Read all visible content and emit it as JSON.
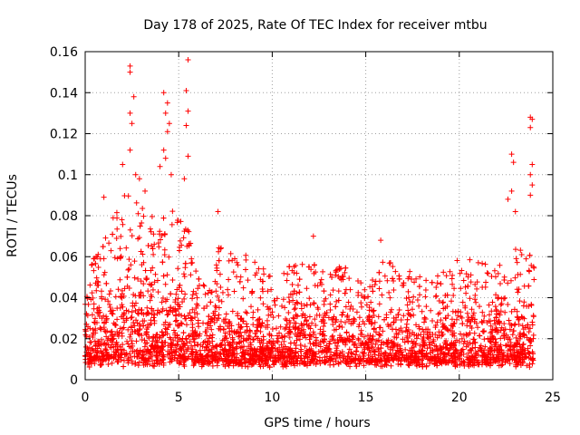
{
  "chart_data": {
    "type": "scatter",
    "title": "Day 178 of 2025, Rate Of TEC Index for receiver mtbu",
    "xlabel": "GPS time / hours",
    "ylabel": "ROTI / TECUs",
    "xlim": [
      0,
      25
    ],
    "ylim": [
      0,
      0.16
    ],
    "xticks": [
      0,
      5,
      10,
      15,
      20,
      25
    ],
    "yticks": [
      0,
      0.02,
      0.04,
      0.06,
      0.08,
      0.1,
      0.12,
      0.14,
      0.16
    ],
    "ytick_labels": [
      "0",
      "0.02",
      "0.04",
      "0.06",
      "0.08",
      "0.1",
      "0.12",
      "0.14",
      "0.16"
    ],
    "grid": true,
    "marker": "plus",
    "series_color": "#ff0000",
    "peaks": [
      {
        "x": 2.4,
        "y": 0.153
      },
      {
        "x": 2.4,
        "y": 0.15
      },
      {
        "x": 2.6,
        "y": 0.138
      },
      {
        "x": 2.4,
        "y": 0.13
      },
      {
        "x": 2.5,
        "y": 0.125
      },
      {
        "x": 2.4,
        "y": 0.112
      },
      {
        "x": 2.0,
        "y": 0.105
      },
      {
        "x": 2.7,
        "y": 0.1
      },
      {
        "x": 2.9,
        "y": 0.098
      },
      {
        "x": 4.2,
        "y": 0.14
      },
      {
        "x": 4.4,
        "y": 0.135
      },
      {
        "x": 4.3,
        "y": 0.13
      },
      {
        "x": 4.5,
        "y": 0.125
      },
      {
        "x": 4.4,
        "y": 0.121
      },
      {
        "x": 4.2,
        "y": 0.112
      },
      {
        "x": 4.3,
        "y": 0.108
      },
      {
        "x": 4.0,
        "y": 0.104
      },
      {
        "x": 4.6,
        "y": 0.1
      },
      {
        "x": 5.5,
        "y": 0.156
      },
      {
        "x": 5.4,
        "y": 0.141
      },
      {
        "x": 5.5,
        "y": 0.131
      },
      {
        "x": 5.4,
        "y": 0.124
      },
      {
        "x": 5.5,
        "y": 0.109
      },
      {
        "x": 5.3,
        "y": 0.098
      },
      {
        "x": 1.0,
        "y": 0.089
      },
      {
        "x": 3.2,
        "y": 0.092
      },
      {
        "x": 7.1,
        "y": 0.082
      },
      {
        "x": 12.2,
        "y": 0.07
      },
      {
        "x": 15.8,
        "y": 0.068
      },
      {
        "x": 22.8,
        "y": 0.11
      },
      {
        "x": 22.9,
        "y": 0.106
      },
      {
        "x": 22.8,
        "y": 0.092
      },
      {
        "x": 23.0,
        "y": 0.082
      },
      {
        "x": 23.8,
        "y": 0.128
      },
      {
        "x": 23.9,
        "y": 0.127
      },
      {
        "x": 23.8,
        "y": 0.123
      },
      {
        "x": 23.9,
        "y": 0.105
      },
      {
        "x": 23.8,
        "y": 0.1
      },
      {
        "x": 23.9,
        "y": 0.095
      },
      {
        "x": 23.8,
        "y": 0.09
      },
      {
        "x": 22.6,
        "y": 0.088
      }
    ],
    "envelope": [
      {
        "x": 0,
        "mean": 0.022,
        "upper": 0.05
      },
      {
        "x": 1,
        "mean": 0.026,
        "upper": 0.07
      },
      {
        "x": 2,
        "mean": 0.032,
        "upper": 0.09
      },
      {
        "x": 2.5,
        "mean": 0.035,
        "upper": 0.09
      },
      {
        "x": 3,
        "mean": 0.03,
        "upper": 0.085
      },
      {
        "x": 4,
        "mean": 0.03,
        "upper": 0.08
      },
      {
        "x": 4.5,
        "mean": 0.032,
        "upper": 0.09
      },
      {
        "x": 5,
        "mean": 0.028,
        "upper": 0.08
      },
      {
        "x": 5.5,
        "mean": 0.028,
        "upper": 0.075
      },
      {
        "x": 6,
        "mean": 0.02,
        "upper": 0.05
      },
      {
        "x": 6.5,
        "mean": 0.018,
        "upper": 0.045
      },
      {
        "x": 7,
        "mean": 0.022,
        "upper": 0.07
      },
      {
        "x": 8,
        "mean": 0.022,
        "upper": 0.06
      },
      {
        "x": 9,
        "mean": 0.022,
        "upper": 0.062
      },
      {
        "x": 10,
        "mean": 0.022,
        "upper": 0.055
      },
      {
        "x": 11,
        "mean": 0.024,
        "upper": 0.058
      },
      {
        "x": 12,
        "mean": 0.024,
        "upper": 0.06
      },
      {
        "x": 13,
        "mean": 0.024,
        "upper": 0.058
      },
      {
        "x": 14,
        "mean": 0.023,
        "upper": 0.056
      },
      {
        "x": 15,
        "mean": 0.02,
        "upper": 0.045
      },
      {
        "x": 16,
        "mean": 0.022,
        "upper": 0.06
      },
      {
        "x": 17,
        "mean": 0.022,
        "upper": 0.055
      },
      {
        "x": 18,
        "mean": 0.02,
        "upper": 0.05
      },
      {
        "x": 19,
        "mean": 0.021,
        "upper": 0.052
      },
      {
        "x": 20,
        "mean": 0.022,
        "upper": 0.06
      },
      {
        "x": 21,
        "mean": 0.022,
        "upper": 0.058
      },
      {
        "x": 22,
        "mean": 0.022,
        "upper": 0.055
      },
      {
        "x": 23,
        "mean": 0.025,
        "upper": 0.065
      },
      {
        "x": 24,
        "mean": 0.024,
        "upper": 0.06
      }
    ]
  }
}
